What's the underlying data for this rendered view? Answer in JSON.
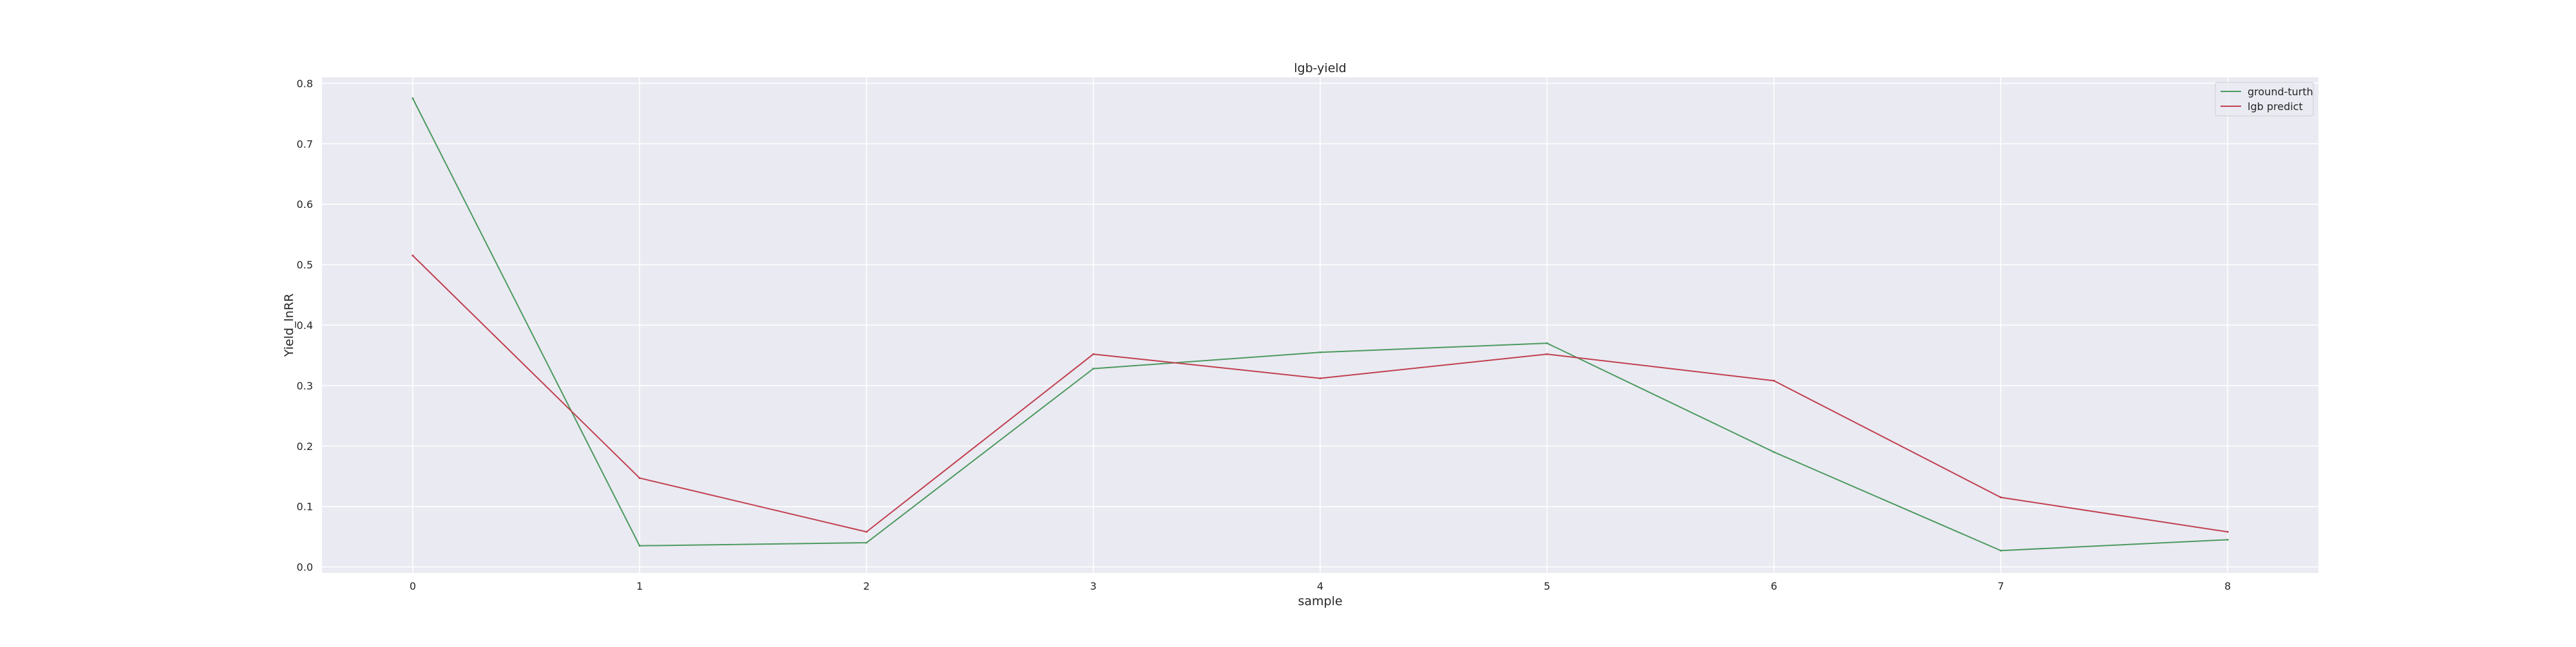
{
  "chart_data": {
    "type": "line",
    "title": "lgb-yield",
    "xlabel": "sample",
    "ylabel": "Yield_lnRR",
    "x": [
      0,
      1,
      2,
      3,
      4,
      5,
      6,
      7,
      8
    ],
    "xlim": [
      -0.4,
      8.4
    ],
    "ylim": [
      -0.01,
      0.81
    ],
    "xticks": [
      0,
      1,
      2,
      3,
      4,
      5,
      6,
      7,
      8
    ],
    "yticks": [
      0.0,
      0.1,
      0.2,
      0.3,
      0.4,
      0.5,
      0.6,
      0.7,
      0.8
    ],
    "ytick_labels": [
      "0.0",
      "0.1",
      "0.2",
      "0.3",
      "0.4",
      "0.5",
      "0.6",
      "0.7",
      "0.8"
    ],
    "grid": true,
    "legend_position": "top-right",
    "series": [
      {
        "name": "ground-turth",
        "color": "#4c9a5f",
        "values": [
          0.775,
          0.035,
          0.04,
          0.328,
          0.355,
          0.37,
          0.19,
          0.027,
          0.045
        ]
      },
      {
        "name": "lgb predict",
        "color": "#c0404f",
        "values": [
          0.515,
          0.147,
          0.058,
          0.352,
          0.312,
          0.352,
          0.308,
          0.115,
          0.058
        ]
      }
    ],
    "colors": {
      "plot_background": "#eaeaf2",
      "grid": "#ffffff",
      "text": "#262626"
    }
  }
}
